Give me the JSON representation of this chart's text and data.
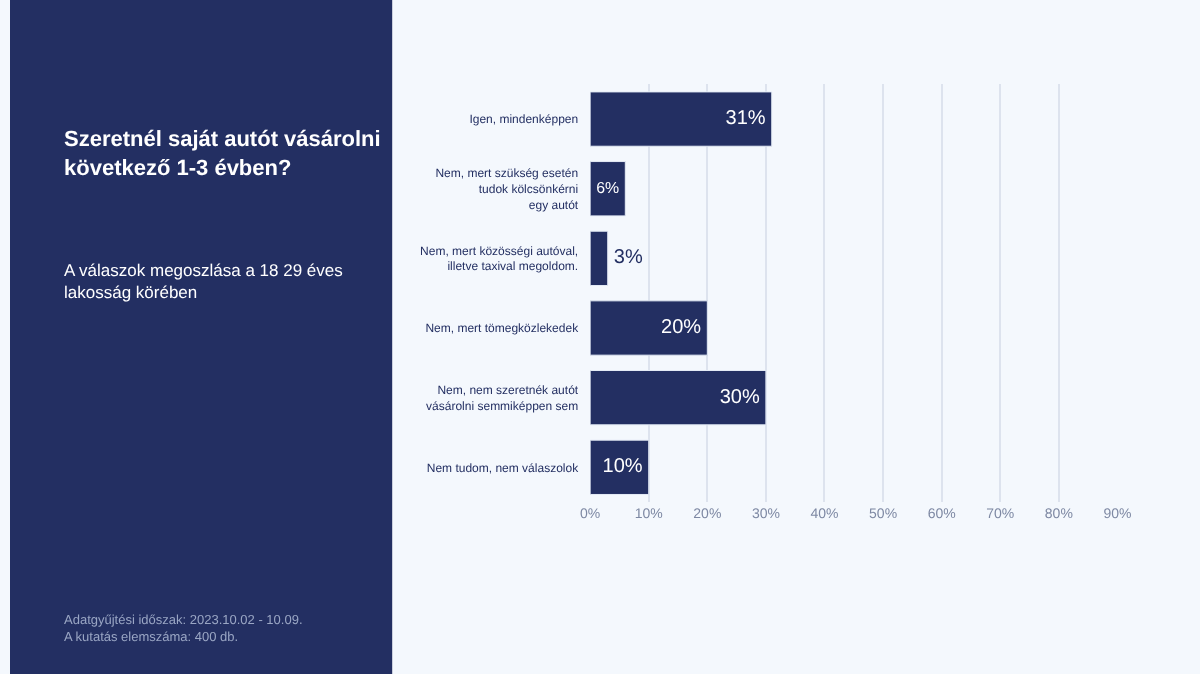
{
  "chart_data": {
    "type": "bar",
    "orientation": "horizontal",
    "title": "Szeretnél saját autót vásárolni\nkövetkező 1-3 évben?",
    "subtitle": "A válaszok megoszlása a 18 29 éves\nlakosság körében",
    "annotations": [
      "Adatgyűjtési időszak: 2023.10.02 - 10.09.\nA kutatás elemszáma: 400 db."
    ],
    "categories": [
      "Igen, mindenképpen",
      "Nem, mert szükség esetén\ntudok kölcsönkérni\negy autót",
      "Nem, mert közösségi autóval,\nilletve taxival megoldom.",
      "Nem, mert tömegközlekedek",
      "Nem, nem szeretnék autót\nvásárolni semmiképpen sem",
      "Nem tudom, nem válaszolok"
    ],
    "values": [
      31,
      6,
      3,
      20,
      30,
      10
    ],
    "value_labels": [
      "31%",
      "6%",
      "3%",
      "20%",
      "30%",
      "10%"
    ],
    "color": "#232f62",
    "xlim": [
      0,
      90
    ],
    "xticks": [
      {
        "value": 0,
        "label": "0%"
      },
      {
        "value": 10,
        "label": "10%"
      },
      {
        "value": 20,
        "label": "20%"
      },
      {
        "value": 30,
        "label": "30%"
      },
      {
        "value": 40,
        "label": "40%"
      },
      {
        "value": 50,
        "label": "50%"
      },
      {
        "value": 60,
        "label": "60%"
      },
      {
        "value": 70,
        "label": "70%"
      },
      {
        "value": 80,
        "label": "80%"
      },
      {
        "value": 90,
        "label": "90%"
      }
    ],
    "grid": "x",
    "legend": false
  }
}
